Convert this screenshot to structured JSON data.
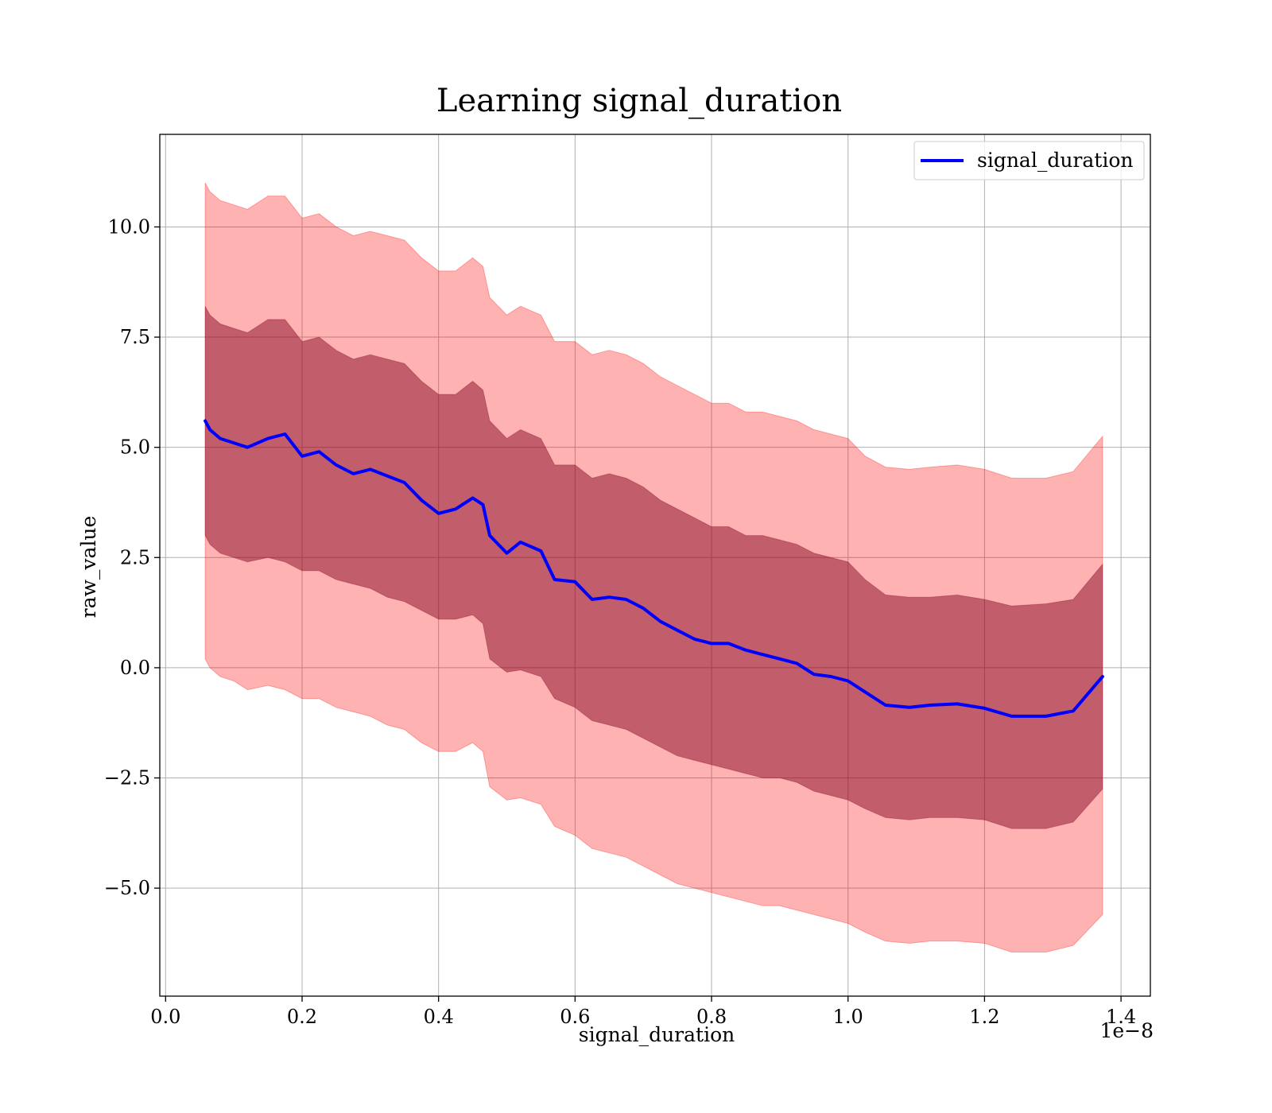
{
  "chart_data": {
    "type": "line",
    "title": "Learning signal_duration",
    "xlabel": "signal_duration",
    "ylabel": "raw_value",
    "x_offset_text": "1e−8",
    "xlim": [
      -0.0085,
      1.443
    ],
    "ylim": [
      -7.45,
      12.1
    ],
    "x_ticks": [
      0.0,
      0.2,
      0.4,
      0.6,
      0.8,
      1.0,
      1.2,
      1.4
    ],
    "x_tick_labels": [
      "0.0",
      "0.2",
      "0.4",
      "0.6",
      "0.8",
      "1.0",
      "1.2",
      "1.4"
    ],
    "y_ticks": [
      -5.0,
      -2.5,
      0.0,
      2.5,
      5.0,
      7.5,
      10.0
    ],
    "y_tick_labels": [
      "−5.0",
      "−2.5",
      "0.0",
      "2.5",
      "5.0",
      "7.5",
      "10.0"
    ],
    "grid": true,
    "legend": {
      "placement": "top-right",
      "entries": [
        "signal_duration"
      ]
    },
    "colors": {
      "mean_line": "#0000ff",
      "band_outer": "#ff0000",
      "band_inner": "#800020",
      "grid": "#b0b0b0"
    },
    "series": [
      {
        "name": "signal_duration",
        "x": [
          0.058,
          0.065,
          0.08,
          0.1,
          0.12,
          0.15,
          0.175,
          0.2,
          0.225,
          0.25,
          0.275,
          0.3,
          0.325,
          0.35,
          0.375,
          0.4,
          0.425,
          0.45,
          0.465,
          0.475,
          0.5,
          0.52,
          0.55,
          0.57,
          0.6,
          0.625,
          0.65,
          0.675,
          0.7,
          0.725,
          0.75,
          0.775,
          0.8,
          0.825,
          0.85,
          0.875,
          0.9,
          0.925,
          0.95,
          0.975,
          1.0,
          1.025,
          1.055,
          1.09,
          1.12,
          1.16,
          1.2,
          1.24,
          1.29,
          1.33,
          1.373
        ],
        "y": [
          5.6,
          5.4,
          5.2,
          5.1,
          5.0,
          5.2,
          5.3,
          4.8,
          4.9,
          4.6,
          4.4,
          4.5,
          4.35,
          4.2,
          3.8,
          3.5,
          3.6,
          3.85,
          3.7,
          3.0,
          2.6,
          2.85,
          2.65,
          2.0,
          1.95,
          1.55,
          1.6,
          1.55,
          1.35,
          1.05,
          0.85,
          0.65,
          0.55,
          0.55,
          0.4,
          0.3,
          0.2,
          0.1,
          -0.15,
          -0.2,
          -0.3,
          -0.55,
          -0.85,
          -0.9,
          -0.85,
          -0.82,
          -0.92,
          -1.1,
          -1.1,
          -0.98,
          -0.2
        ],
        "band_1sigma_lower": [
          3.0,
          2.8,
          2.6,
          2.5,
          2.4,
          2.5,
          2.4,
          2.2,
          2.2,
          2.0,
          1.9,
          1.8,
          1.6,
          1.5,
          1.3,
          1.1,
          1.1,
          1.2,
          1.0,
          0.2,
          -0.1,
          -0.05,
          -0.2,
          -0.7,
          -0.9,
          -1.2,
          -1.3,
          -1.4,
          -1.6,
          -1.8,
          -2.0,
          -2.1,
          -2.2,
          -2.3,
          -2.4,
          -2.5,
          -2.5,
          -2.6,
          -2.8,
          -2.9,
          -3.0,
          -3.2,
          -3.4,
          -3.45,
          -3.4,
          -3.4,
          -3.45,
          -3.65,
          -3.65,
          -3.5,
          -2.75
        ],
        "band_1sigma_upper": [
          8.2,
          8.0,
          7.8,
          7.7,
          7.6,
          7.9,
          7.9,
          7.4,
          7.5,
          7.2,
          7.0,
          7.1,
          7.0,
          6.9,
          6.5,
          6.2,
          6.2,
          6.5,
          6.3,
          5.6,
          5.2,
          5.4,
          5.2,
          4.6,
          4.6,
          4.3,
          4.4,
          4.3,
          4.1,
          3.8,
          3.6,
          3.4,
          3.2,
          3.2,
          3.0,
          3.0,
          2.9,
          2.8,
          2.6,
          2.5,
          2.4,
          2.0,
          1.65,
          1.6,
          1.6,
          1.65,
          1.55,
          1.4,
          1.45,
          1.55,
          2.35
        ],
        "band_2sigma_lower": [
          0.2,
          0.0,
          -0.2,
          -0.3,
          -0.5,
          -0.4,
          -0.5,
          -0.7,
          -0.7,
          -0.9,
          -1.0,
          -1.1,
          -1.3,
          -1.4,
          -1.7,
          -1.9,
          -1.9,
          -1.7,
          -1.9,
          -2.7,
          -3.0,
          -2.95,
          -3.1,
          -3.6,
          -3.8,
          -4.1,
          -4.2,
          -4.3,
          -4.5,
          -4.7,
          -4.9,
          -5.0,
          -5.1,
          -5.2,
          -5.3,
          -5.4,
          -5.4,
          -5.5,
          -5.6,
          -5.7,
          -5.8,
          -6.0,
          -6.2,
          -6.25,
          -6.2,
          -6.2,
          -6.25,
          -6.45,
          -6.45,
          -6.3,
          -5.6
        ],
        "band_2sigma_upper": [
          11.0,
          10.8,
          10.6,
          10.5,
          10.4,
          10.7,
          10.7,
          10.2,
          10.3,
          10.0,
          9.8,
          9.9,
          9.8,
          9.7,
          9.3,
          9.0,
          9.0,
          9.3,
          9.1,
          8.4,
          8.0,
          8.2,
          8.0,
          7.4,
          7.4,
          7.1,
          7.2,
          7.1,
          6.9,
          6.6,
          6.4,
          6.2,
          6.0,
          6.0,
          5.8,
          5.8,
          5.7,
          5.6,
          5.4,
          5.3,
          5.2,
          4.8,
          4.55,
          4.5,
          4.55,
          4.6,
          4.5,
          4.3,
          4.3,
          4.45,
          5.25
        ]
      }
    ]
  }
}
